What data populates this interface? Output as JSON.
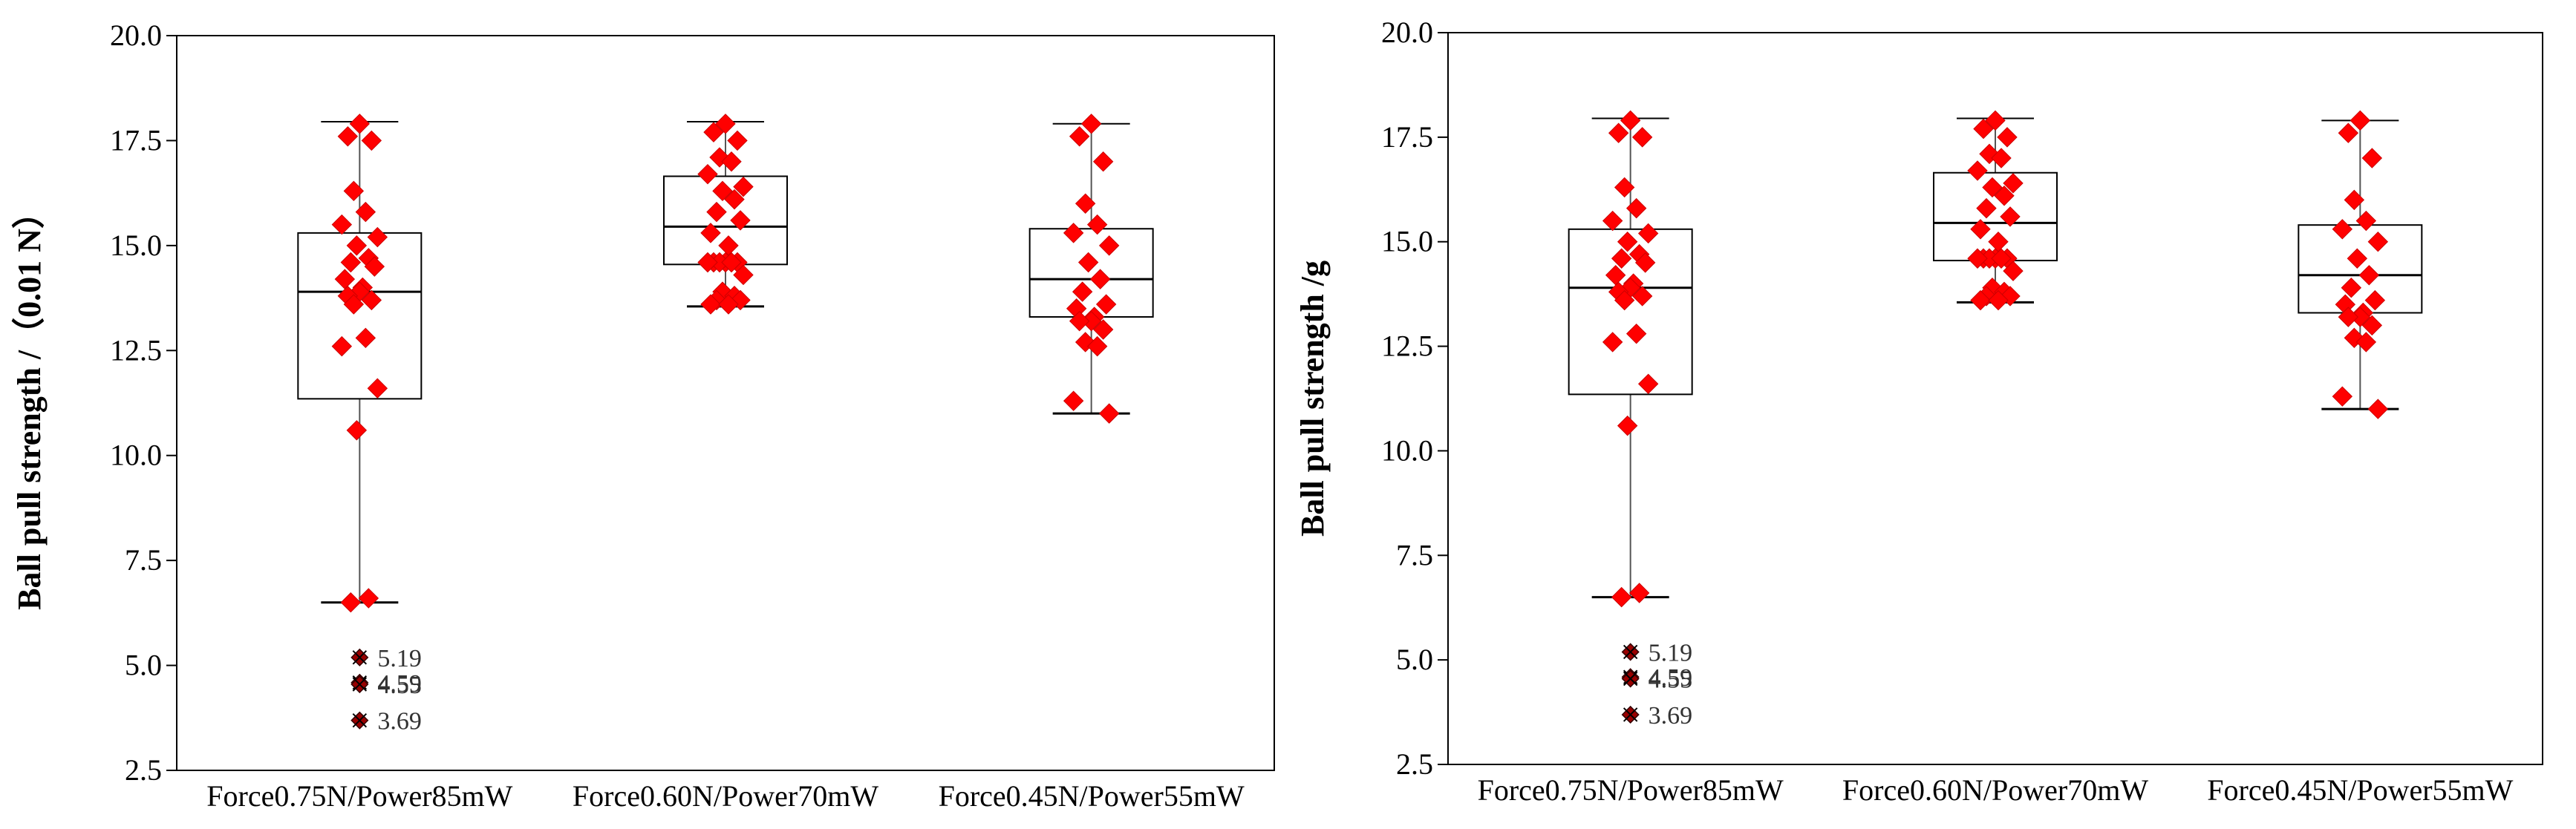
{
  "colors": {
    "point": "#ff0000",
    "box": "#000000",
    "axis": "#000000",
    "background": "#ffffff",
    "outlier_marker": "#990000"
  },
  "chart_data": [
    {
      "type": "box",
      "title": "",
      "xlabel": "",
      "ylabel": "Ball pull strength /（0.01 N）",
      "ylim": [
        2.5,
        20.0
      ],
      "yticks": [
        "2.5",
        "5.0",
        "7.5",
        "10.0",
        "12.5",
        "15.0",
        "17.5",
        "20.0"
      ],
      "categories": [
        "Force0.75N/Power85mW",
        "Force0.60N/Power70mW",
        "Force0.45N/Power55mW"
      ],
      "boxes": [
        {
          "whisker_low": 6.5,
          "q1": 11.35,
          "median": 13.9,
          "q3": 15.3,
          "whisker_high": 17.95
        },
        {
          "whisker_low": 13.55,
          "q1": 14.55,
          "median": 15.45,
          "q3": 16.65,
          "whisker_high": 17.95
        },
        {
          "whisker_low": 11.0,
          "q1": 13.3,
          "median": 14.2,
          "q3": 15.4,
          "whisker_high": 17.9
        }
      ],
      "points": [
        [
          17.9,
          17.6,
          17.5,
          16.3,
          15.8,
          15.5,
          15.2,
          15.0,
          14.7,
          14.6,
          14.5,
          14.2,
          14.0,
          13.9,
          13.8,
          13.7,
          13.6,
          12.8,
          12.6,
          11.6,
          10.6,
          6.6,
          6.5
        ],
        [
          17.9,
          17.7,
          17.5,
          17.1,
          17.0,
          16.7,
          16.4,
          16.3,
          16.1,
          15.8,
          15.6,
          15.3,
          15.0,
          14.6,
          14.6,
          14.6,
          14.6,
          14.6,
          14.6,
          14.3,
          13.9,
          13.8,
          13.7,
          13.7,
          13.6,
          13.6
        ],
        [
          17.9,
          17.6,
          17.0,
          16.0,
          15.5,
          15.3,
          15.0,
          14.6,
          14.2,
          13.9,
          13.6,
          13.5,
          13.3,
          13.2,
          13.2,
          13.0,
          12.7,
          12.6,
          11.3,
          11.0
        ]
      ],
      "outliers": [
        {
          "category_index": 0,
          "value": 5.19,
          "label": "5.19"
        },
        {
          "category_index": 0,
          "value": 4.59,
          "label": "4.59"
        },
        {
          "category_index": 0,
          "value": 4.55,
          "label": "4.55"
        },
        {
          "category_index": 0,
          "value": 3.69,
          "label": "3.69"
        }
      ]
    },
    {
      "type": "box",
      "title": "",
      "xlabel": "",
      "ylabel": "Ball pull strength /g",
      "ylim": [
        2.5,
        20.0
      ],
      "yticks": [
        "2.5",
        "5.0",
        "7.5",
        "10.0",
        "12.5",
        "15.0",
        "17.5",
        "20.0"
      ],
      "categories": [
        "Force0.75N/Power85mW",
        "Force0.60N/Power70mW",
        "Force0.45N/Power55mW"
      ],
      "boxes": [
        {
          "whisker_low": 6.5,
          "q1": 11.35,
          "median": 13.9,
          "q3": 15.3,
          "whisker_high": 17.95
        },
        {
          "whisker_low": 13.55,
          "q1": 14.55,
          "median": 15.45,
          "q3": 16.65,
          "whisker_high": 17.95
        },
        {
          "whisker_low": 11.0,
          "q1": 13.3,
          "median": 14.2,
          "q3": 15.4,
          "whisker_high": 17.9
        }
      ],
      "points": [
        [
          17.9,
          17.6,
          17.5,
          16.3,
          15.8,
          15.5,
          15.2,
          15.0,
          14.7,
          14.6,
          14.5,
          14.2,
          14.0,
          13.9,
          13.8,
          13.7,
          13.6,
          12.8,
          12.6,
          11.6,
          10.6,
          6.6,
          6.5
        ],
        [
          17.9,
          17.7,
          17.5,
          17.1,
          17.0,
          16.7,
          16.4,
          16.3,
          16.1,
          15.8,
          15.6,
          15.3,
          15.0,
          14.6,
          14.6,
          14.6,
          14.6,
          14.6,
          14.6,
          14.3,
          13.9,
          13.8,
          13.7,
          13.7,
          13.6,
          13.6
        ],
        [
          17.9,
          17.6,
          17.0,
          16.0,
          15.5,
          15.3,
          15.0,
          14.6,
          14.2,
          13.9,
          13.6,
          13.5,
          13.3,
          13.2,
          13.2,
          13.0,
          12.7,
          12.6,
          11.3,
          11.0
        ]
      ],
      "outliers": [
        {
          "category_index": 0,
          "value": 5.19,
          "label": "5.19"
        },
        {
          "category_index": 0,
          "value": 4.59,
          "label": "4.59"
        },
        {
          "category_index": 0,
          "value": 4.55,
          "label": "4.55"
        },
        {
          "category_index": 0,
          "value": 3.69,
          "label": "3.69"
        }
      ]
    }
  ]
}
